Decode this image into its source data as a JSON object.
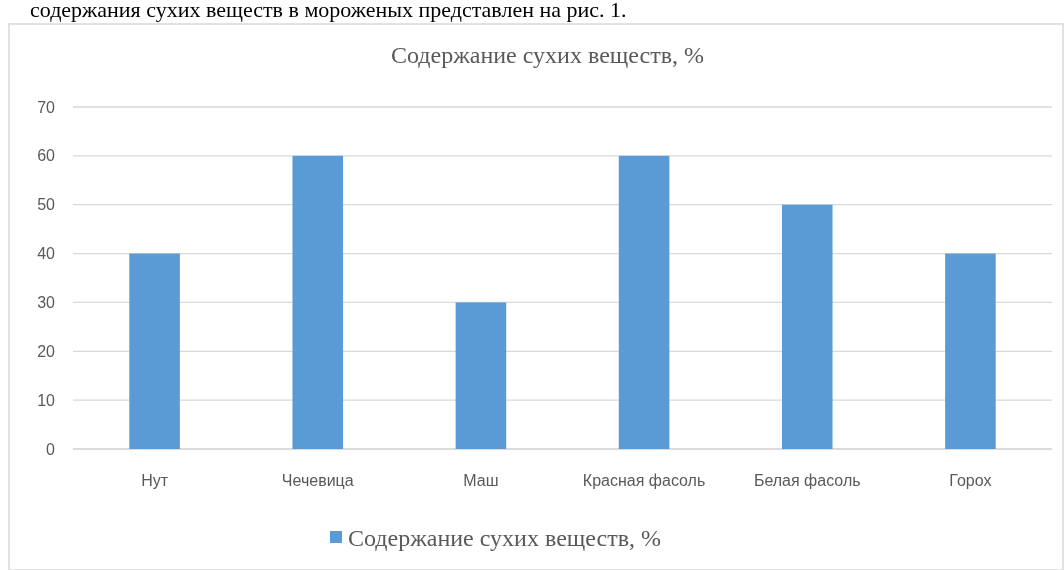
{
  "chart_data": {
    "type": "bar",
    "title": "Содержание сухих веществ, %",
    "annotations": [
      "содержания сухих веществ в мороженых представлен на рис. 1."
    ],
    "categories": [
      "Нут",
      "Чечевица",
      "Маш",
      "Красная фасоль",
      "Белая фасоль",
      "Горох"
    ],
    "series": [
      {
        "name": "Содержание сухих веществ, %",
        "color": "#5b9bd5",
        "values": [
          40,
          60,
          30,
          60,
          50,
          40
        ]
      }
    ],
    "ylim": [
      0,
      70
    ],
    "yticks": [
      0,
      10,
      20,
      30,
      40,
      50,
      60,
      70
    ],
    "grid": "y",
    "legend": "bottom"
  }
}
